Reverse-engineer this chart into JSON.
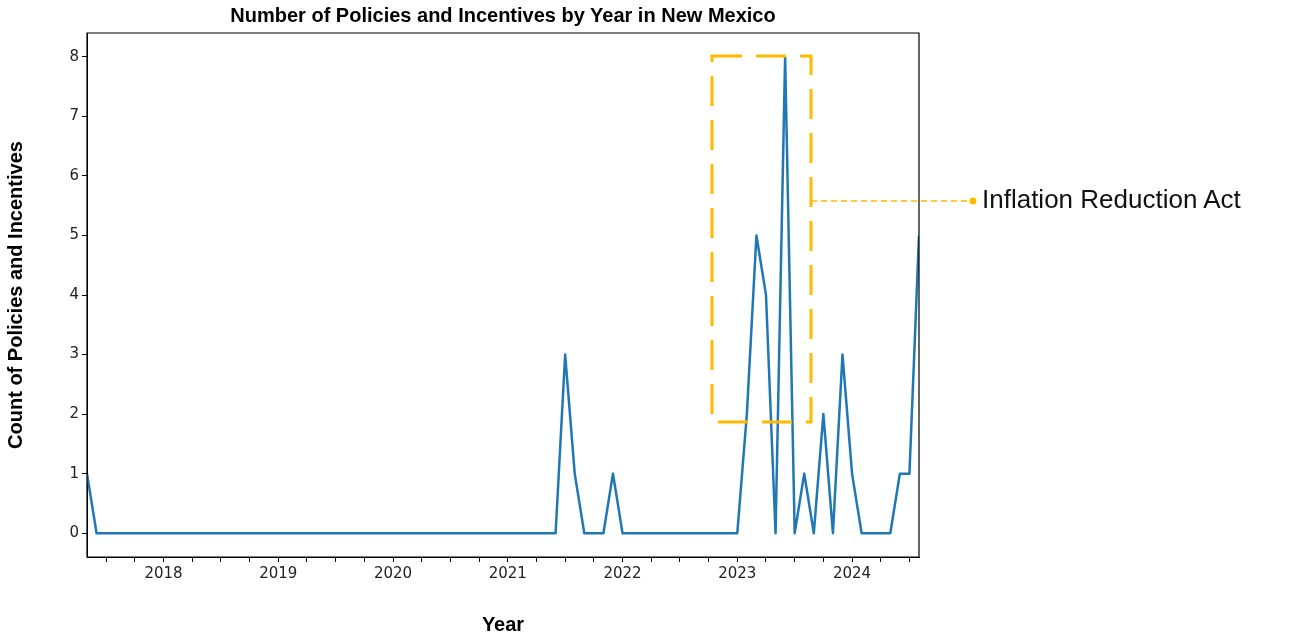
{
  "chart_data": {
    "type": "line",
    "title": "Number of Policies and Incentives by Year in New Mexico",
    "xlabel": "Year",
    "ylabel": "Count of Policies and Incentives",
    "x": [
      "2017-05",
      "2017-06",
      "2017-07",
      "2017-08",
      "2017-09",
      "2017-10",
      "2017-11",
      "2017-12",
      "2018-01",
      "2018-02",
      "2018-03",
      "2018-04",
      "2018-05",
      "2018-06",
      "2018-07",
      "2018-08",
      "2018-09",
      "2018-10",
      "2018-11",
      "2018-12",
      "2019-01",
      "2019-02",
      "2019-03",
      "2019-04",
      "2019-05",
      "2019-06",
      "2019-07",
      "2019-08",
      "2019-09",
      "2019-10",
      "2019-11",
      "2019-12",
      "2020-01",
      "2020-02",
      "2020-03",
      "2020-04",
      "2020-05",
      "2020-06",
      "2020-07",
      "2020-08",
      "2020-09",
      "2020-10",
      "2020-11",
      "2020-12",
      "2021-01",
      "2021-02",
      "2021-03",
      "2021-04",
      "2021-05",
      "2021-06",
      "2021-07",
      "2021-08",
      "2021-09",
      "2021-10",
      "2021-11",
      "2021-12",
      "2022-01",
      "2022-02",
      "2022-03",
      "2022-04",
      "2022-05",
      "2022-06",
      "2022-07",
      "2022-08",
      "2022-09",
      "2022-10",
      "2022-11",
      "2022-12",
      "2023-01",
      "2023-02",
      "2023-03",
      "2023-04",
      "2023-05",
      "2023-06",
      "2023-07",
      "2023-08",
      "2023-09",
      "2023-10",
      "2023-11",
      "2023-12",
      "2024-01",
      "2024-02",
      "2024-03",
      "2024-04",
      "2024-05",
      "2024-06",
      "2024-07",
      "2024-08"
    ],
    "series": [
      {
        "color": "#1f77b4",
        "values": [
          1,
          0,
          0,
          0,
          0,
          0,
          0,
          0,
          0,
          0,
          0,
          0,
          0,
          0,
          0,
          0,
          0,
          0,
          0,
          0,
          0,
          0,
          0,
          0,
          0,
          0,
          0,
          0,
          0,
          0,
          0,
          0,
          0,
          0,
          0,
          0,
          0,
          0,
          0,
          0,
          0,
          0,
          0,
          0,
          0,
          0,
          0,
          0,
          0,
          0,
          3,
          1,
          0,
          0,
          0,
          1,
          0,
          0,
          0,
          0,
          0,
          0,
          0,
          0,
          0,
          0,
          0,
          0,
          0,
          2,
          5,
          4,
          0,
          8,
          0,
          1,
          0,
          2,
          0,
          3,
          1,
          0,
          0,
          0,
          0,
          1,
          1,
          5
        ]
      }
    ],
    "xlim": [
      "2017-05",
      "2024-08"
    ],
    "xticks": [
      {
        "value": "2017-07",
        "label": null
      },
      {
        "value": "2017-10",
        "label": null
      },
      {
        "value": "2018",
        "label": "2018"
      },
      {
        "value": "2018-04",
        "label": null
      },
      {
        "value": "2018-07",
        "label": null
      },
      {
        "value": "2018-10",
        "label": null
      },
      {
        "value": "2019",
        "label": "2019"
      },
      {
        "value": "2019-04",
        "label": null
      },
      {
        "value": "2019-07",
        "label": null
      },
      {
        "value": "2019-10",
        "label": null
      },
      {
        "value": "2020",
        "label": "2020"
      },
      {
        "value": "2020-04",
        "label": null
      },
      {
        "value": "2020-07",
        "label": null
      },
      {
        "value": "2020-10",
        "label": null
      },
      {
        "value": "2021",
        "label": "2021"
      },
      {
        "value": "2021-04",
        "label": null
      },
      {
        "value": "2021-07",
        "label": null
      },
      {
        "value": "2021-10",
        "label": null
      },
      {
        "value": "2022",
        "label": "2022"
      },
      {
        "value": "2022-04",
        "label": null
      },
      {
        "value": "2022-07",
        "label": null
      },
      {
        "value": "2022-10",
        "label": null
      },
      {
        "value": "2023",
        "label": "2023"
      },
      {
        "value": "2023-04",
        "label": null
      },
      {
        "value": "2023-07",
        "label": null
      },
      {
        "value": "2023-10",
        "label": null
      },
      {
        "value": "2024",
        "label": "2024"
      },
      {
        "value": "2024-04",
        "label": null
      },
      {
        "value": "2024-07",
        "label": null
      }
    ],
    "ylim": [
      -0.4,
      8.4
    ],
    "yticks": [
      0,
      1,
      2,
      3,
      4,
      5,
      6,
      7,
      8
    ],
    "annotations": [
      "Inflation Reduction Act"
    ],
    "grid": false,
    "legend": false,
    "marker": "none",
    "line_style": "solid"
  }
}
